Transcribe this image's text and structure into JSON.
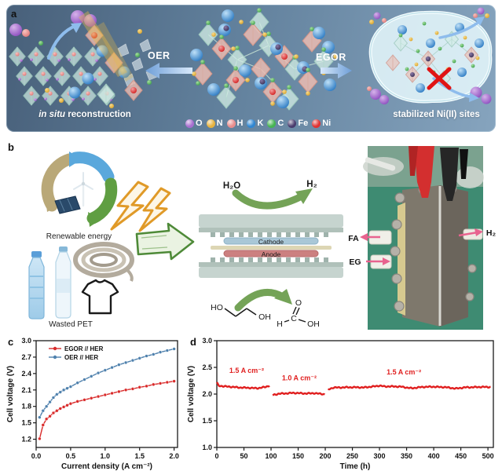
{
  "panels": {
    "a": {
      "label": "a",
      "caption_left_italic": "in situ",
      "caption_left_rest": " reconstruction",
      "oer_label": "OER",
      "egor_label": "EGOR",
      "caption_right": "stabilized Ni(II) sites",
      "atom_legend": [
        {
          "symbol": "O",
          "color": "#a86fd0"
        },
        {
          "symbol": "N",
          "color": "#e6b23e"
        },
        {
          "symbol": "H",
          "color": "#e88d8d"
        },
        {
          "symbol": "K",
          "color": "#2f86d2"
        },
        {
          "symbol": "C",
          "color": "#46b452"
        },
        {
          "symbol": "Fe",
          "color": "#4a3c6e"
        },
        {
          "symbol": "Ni",
          "color": "#e03232"
        }
      ]
    },
    "b": {
      "label": "b",
      "renewable_caption": "Renewable energy",
      "pet_caption": "Wasted PET",
      "h2o_label": "H₂O",
      "h2_top_label": "H₂",
      "cathode_label": "Cathode",
      "anode_label": "Anode",
      "eg_molecule": {
        "ho": "HO",
        "oh": "OH"
      },
      "fa_molecule": {
        "o": "O",
        "c": "C",
        "h": "H",
        "oh": "OH"
      },
      "photo_labels": {
        "fa": "FA",
        "eg": "EG",
        "h2": "H₂"
      }
    },
    "c": {
      "label": "c"
    },
    "d": {
      "label": "d"
    }
  },
  "chart_data": [
    {
      "id": "c",
      "type": "line",
      "xlabel": "Current density (A cm⁻²)",
      "ylabel": "Cell voltage (V)",
      "xlim": [
        0,
        2.05
      ],
      "ylim": [
        1.05,
        3.0
      ],
      "xticks": [
        {
          "v": 0.0,
          "t": "0.0"
        },
        {
          "v": 0.5,
          "t": "0.5"
        },
        {
          "v": 1.0,
          "t": "1.0"
        },
        {
          "v": 1.5,
          "t": "1.5"
        },
        {
          "v": 2.0,
          "t": "2.0"
        }
      ],
      "yticks": [
        {
          "v": 1.2,
          "t": "1.2"
        },
        {
          "v": 1.5,
          "t": "1.5"
        },
        {
          "v": 1.8,
          "t": "1.8"
        },
        {
          "v": 2.1,
          "t": "2.1"
        },
        {
          "v": 2.4,
          "t": "2.4"
        },
        {
          "v": 2.7,
          "t": "2.7"
        },
        {
          "v": 3.0,
          "t": "3.0"
        }
      ],
      "legend_position": "top-left",
      "grid": false,
      "series": [
        {
          "name": "EGOR // HER",
          "color": "#d92b2b",
          "x": [
            0.05,
            0.1,
            0.15,
            0.2,
            0.25,
            0.3,
            0.35,
            0.4,
            0.45,
            0.5,
            0.6,
            0.7,
            0.8,
            0.9,
            1.0,
            1.1,
            1.2,
            1.3,
            1.4,
            1.5,
            1.6,
            1.7,
            1.8,
            1.9,
            2.0
          ],
          "y": [
            1.21,
            1.46,
            1.57,
            1.62,
            1.68,
            1.72,
            1.76,
            1.79,
            1.82,
            1.85,
            1.89,
            1.92,
            1.95,
            1.98,
            2.01,
            2.04,
            2.07,
            2.1,
            2.12,
            2.15,
            2.17,
            2.2,
            2.22,
            2.24,
            2.26
          ]
        },
        {
          "name": "OER // HER",
          "color": "#4f81ad",
          "x": [
            0.05,
            0.1,
            0.15,
            0.2,
            0.25,
            0.3,
            0.35,
            0.4,
            0.45,
            0.5,
            0.6,
            0.7,
            0.8,
            0.9,
            1.0,
            1.1,
            1.2,
            1.3,
            1.4,
            1.5,
            1.6,
            1.7,
            1.8,
            1.9,
            2.0
          ],
          "y": [
            1.6,
            1.72,
            1.8,
            1.88,
            1.96,
            2.02,
            2.06,
            2.1,
            2.13,
            2.16,
            2.23,
            2.29,
            2.35,
            2.41,
            2.46,
            2.51,
            2.56,
            2.6,
            2.64,
            2.68,
            2.72,
            2.75,
            2.79,
            2.82,
            2.85
          ]
        }
      ]
    },
    {
      "id": "d",
      "type": "line",
      "xlabel": "Time (h)",
      "ylabel": "Cell voltage (V)",
      "xlim": [
        0,
        510
      ],
      "ylim": [
        1.0,
        3.0
      ],
      "xticks": [
        {
          "v": 0,
          "t": "0"
        },
        {
          "v": 50,
          "t": "50"
        },
        {
          "v": 100,
          "t": "100"
        },
        {
          "v": 150,
          "t": "150"
        },
        {
          "v": 200,
          "t": "200"
        },
        {
          "v": 250,
          "t": "250"
        },
        {
          "v": 300,
          "t": "300"
        },
        {
          "v": 350,
          "t": "350"
        },
        {
          "v": 400,
          "t": "400"
        },
        {
          "v": 450,
          "t": "450"
        },
        {
          "v": 500,
          "t": "500"
        }
      ],
      "yticks": [
        {
          "v": 1.0,
          "t": "1.0"
        },
        {
          "v": 1.5,
          "t": "1.5"
        },
        {
          "v": 2.0,
          "t": "2.0"
        },
        {
          "v": 2.5,
          "t": "2.5"
        },
        {
          "v": 3.0,
          "t": "3.0"
        }
      ],
      "grid": false,
      "trace_color": "#e01f1f",
      "segments": [
        {
          "current": "1.5 A cm⁻²",
          "points": [
            [
              0,
              2.22
            ],
            [
              3,
              2.16
            ],
            [
              20,
              2.14
            ],
            [
              40,
              2.12
            ],
            [
              60,
              2.12
            ],
            [
              75,
              2.11
            ],
            [
              90,
              2.13
            ],
            [
              98,
              2.16
            ]
          ]
        },
        {
          "current": "1.0 A cm⁻²",
          "points": [
            [
              103,
              1.98
            ],
            [
              115,
              2.01
            ],
            [
              140,
              2.02
            ],
            [
              160,
              2.01
            ],
            [
              180,
              2.02
            ],
            [
              195,
              2.0
            ],
            [
              200,
              1.99
            ]
          ]
        },
        {
          "current": "1.5 A cm⁻²",
          "points": [
            [
              205,
              2.08
            ],
            [
              215,
              2.12
            ],
            [
              240,
              2.13
            ],
            [
              270,
              2.12
            ],
            [
              300,
              2.16
            ],
            [
              310,
              2.14
            ],
            [
              340,
              2.14
            ],
            [
              360,
              2.11
            ],
            [
              380,
              2.13
            ],
            [
              400,
              2.14
            ],
            [
              420,
              2.13
            ],
            [
              440,
              2.1
            ],
            [
              460,
              2.13
            ],
            [
              480,
              2.13
            ],
            [
              505,
              2.13
            ]
          ]
        }
      ],
      "annotations": [
        {
          "text": "1.5 A cm⁻²",
          "x": 55,
          "y": 2.4
        },
        {
          "text": "1.0 A cm⁻²",
          "x": 152,
          "y": 2.26
        },
        {
          "text": "1.5 A cm⁻²",
          "x": 345,
          "y": 2.37
        }
      ]
    }
  ]
}
